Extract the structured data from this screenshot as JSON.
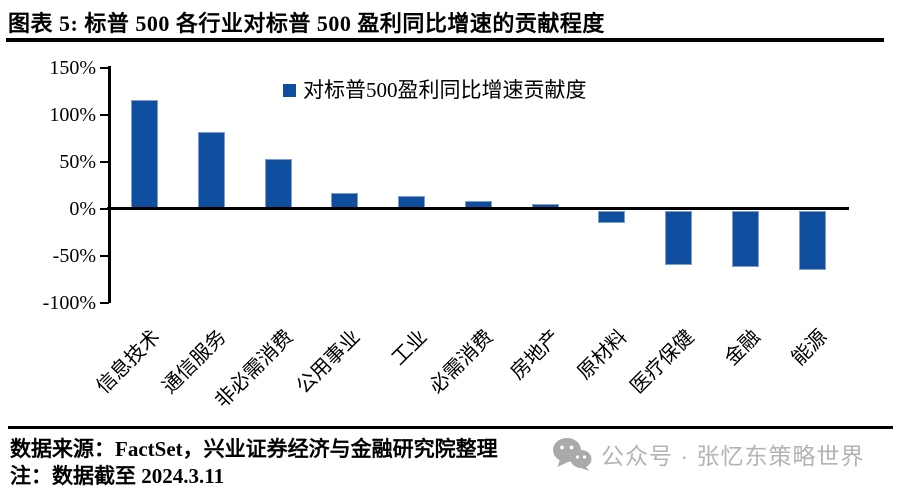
{
  "page": {
    "title": "图表 5:  标普 500 各行业对标普 500 盈利同比增速的贡献程度",
    "footer": {
      "source_line": "数据来源：FactSet，兴业证券经济与金融研究院整理",
      "note_line": "注：数据截至 2024.3.11"
    },
    "watermark": {
      "icon": "wechat-icon",
      "text": "公众号 · 张忆东策略世界",
      "color": "#b3b3b3"
    }
  },
  "chart_data": {
    "type": "bar",
    "title": "标普 500 各行业对标普 500 盈利同比增速的贡献程度",
    "legend": [
      "对标普500盈利同比增速贡献度"
    ],
    "legend_position": "top-center",
    "categories": [
      "信息技术",
      "通信服务",
      "非必需消费",
      "公用事业",
      "工业",
      "必需消费",
      "房地产",
      "原材料",
      "医疗保健",
      "金融",
      "能源"
    ],
    "values": [
      115,
      81,
      53,
      16,
      13,
      8,
      5,
      -13,
      -58,
      -60,
      -63
    ],
    "unit": "%",
    "y_ticks": [
      "150%",
      "100%",
      "50%",
      "0%",
      "-50%",
      "-100%"
    ],
    "ylim": [
      -100,
      150
    ],
    "xlabel": "",
    "ylabel": "",
    "grid": false,
    "x_label_rotation_deg": 45,
    "bar_color": "#0f4e9e"
  }
}
